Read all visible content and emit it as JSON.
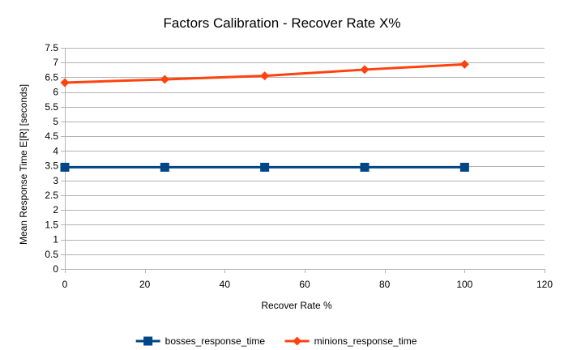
{
  "chart_data": {
    "type": "line",
    "title": "Factors Calibration - Recover Rate X%",
    "xlabel": "Recover Rate %",
    "ylabel": "Mean Response Time E[R] [seconds]",
    "xlim": [
      0,
      120
    ],
    "ylim": [
      0,
      7.5
    ],
    "x_ticks": [
      0,
      20,
      40,
      60,
      80,
      100,
      120
    ],
    "y_ticks": [
      0,
      0.5,
      1,
      1.5,
      2,
      2.5,
      3,
      3.5,
      4,
      4.5,
      5,
      5.5,
      6,
      6.5,
      7,
      7.5
    ],
    "grid": "horizontal",
    "legend_position": "bottom",
    "series": [
      {
        "name": "bosses_response_time",
        "color": "#004586",
        "marker": "square",
        "x": [
          0,
          25,
          50,
          75,
          100
        ],
        "y": [
          3.45,
          3.45,
          3.45,
          3.45,
          3.45
        ]
      },
      {
        "name": "minions_response_time",
        "color": "#ff420e",
        "marker": "diamond",
        "x": [
          0,
          25,
          50,
          75,
          100
        ],
        "y": [
          6.32,
          6.43,
          6.55,
          6.76,
          6.94
        ]
      }
    ]
  }
}
